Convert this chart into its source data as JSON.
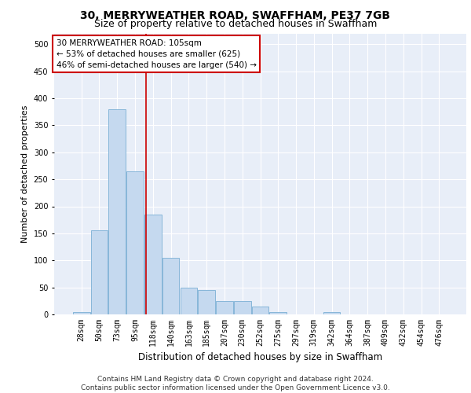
{
  "title": "30, MERRYWEATHER ROAD, SWAFFHAM, PE37 7GB",
  "subtitle": "Size of property relative to detached houses in Swaffham",
  "xlabel": "Distribution of detached houses by size in Swaffham",
  "ylabel": "Number of detached properties",
  "bar_labels": [
    "28sqm",
    "50sqm",
    "73sqm",
    "95sqm",
    "118sqm",
    "140sqm",
    "163sqm",
    "185sqm",
    "207sqm",
    "230sqm",
    "252sqm",
    "275sqm",
    "297sqm",
    "319sqm",
    "342sqm",
    "364sqm",
    "387sqm",
    "409sqm",
    "432sqm",
    "454sqm",
    "476sqm"
  ],
  "bar_values": [
    5,
    155,
    380,
    265,
    185,
    105,
    50,
    45,
    25,
    25,
    15,
    5,
    0,
    0,
    5,
    0,
    0,
    0,
    0,
    0,
    0
  ],
  "bar_color": "#c5d9ef",
  "bar_edge_color": "#7aafd4",
  "background_color": "#e8eef8",
  "grid_color": "#ffffff",
  "vline_x": 3.62,
  "vline_color": "#cc0000",
  "annotation_text": "30 MERRYWEATHER ROAD: 105sqm\n← 53% of detached houses are smaller (625)\n46% of semi-detached houses are larger (540) →",
  "annotation_box_color": "#ffffff",
  "annotation_box_edge": "#cc0000",
  "ylim": [
    0,
    520
  ],
  "yticks": [
    0,
    50,
    100,
    150,
    200,
    250,
    300,
    350,
    400,
    450,
    500
  ],
  "footer_text": "Contains HM Land Registry data © Crown copyright and database right 2024.\nContains public sector information licensed under the Open Government Licence v3.0.",
  "title_fontsize": 10,
  "subtitle_fontsize": 9,
  "xlabel_fontsize": 8.5,
  "ylabel_fontsize": 8,
  "tick_fontsize": 7,
  "annotation_fontsize": 7.5,
  "footer_fontsize": 6.5
}
